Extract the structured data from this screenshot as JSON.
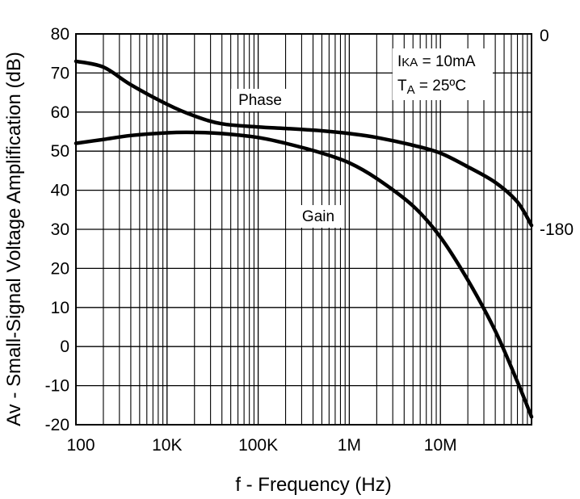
{
  "chart_data": {
    "type": "line",
    "title": "",
    "xlabel": "f - Frequency (Hz)",
    "ylabel": "Av - Small-Signal Voltage Amplification (dB)",
    "x_scale": "log",
    "xlim": [
      100,
      10000000
    ],
    "ylim": [
      -20,
      80
    ],
    "x_tick_labels": [
      "100",
      "10K",
      "100K",
      "1M",
      "10M"
    ],
    "y_ticks": [
      -20,
      -10,
      0,
      10,
      20,
      30,
      40,
      50,
      60,
      70,
      80
    ],
    "y_tick_labels": [
      "-20",
      "-10",
      "0",
      "10",
      "20",
      "30",
      "40",
      "50",
      "60",
      "70",
      "80"
    ],
    "right_axis": {
      "ticks": [
        0,
        -180
      ],
      "tick_labels": [
        "0",
        "-180"
      ]
    },
    "grid": true,
    "annotations": {
      "ika": {
        "main": "I",
        "sub": "KA",
        "rest": " = 10mA"
      },
      "ta": {
        "main": "T",
        "sub": "A",
        "rest": " = 25ºC"
      }
    },
    "series": [
      {
        "name": "Phase",
        "x": [
          100,
          200,
          400,
          1000,
          2000,
          4000,
          10000,
          20000,
          50000,
          100000,
          200000,
          500000,
          1000000,
          2000000,
          4000000,
          7000000,
          10000000
        ],
        "y": [
          73,
          71.5,
          67,
          62,
          59,
          57,
          56.2,
          55.8,
          55.2,
          54.5,
          53.5,
          51.5,
          49.5,
          46,
          42,
          37,
          31
        ]
      },
      {
        "name": "Gain",
        "x": [
          100,
          200,
          400,
          1000,
          2000,
          4000,
          10000,
          20000,
          50000,
          100000,
          200000,
          500000,
          1000000,
          2000000,
          4000000,
          7000000,
          10000000
        ],
        "y": [
          52,
          53,
          54,
          54.7,
          54.8,
          54.5,
          53.5,
          52,
          49.5,
          47,
          43,
          36,
          28,
          17,
          4,
          -9,
          -18
        ]
      }
    ]
  }
}
